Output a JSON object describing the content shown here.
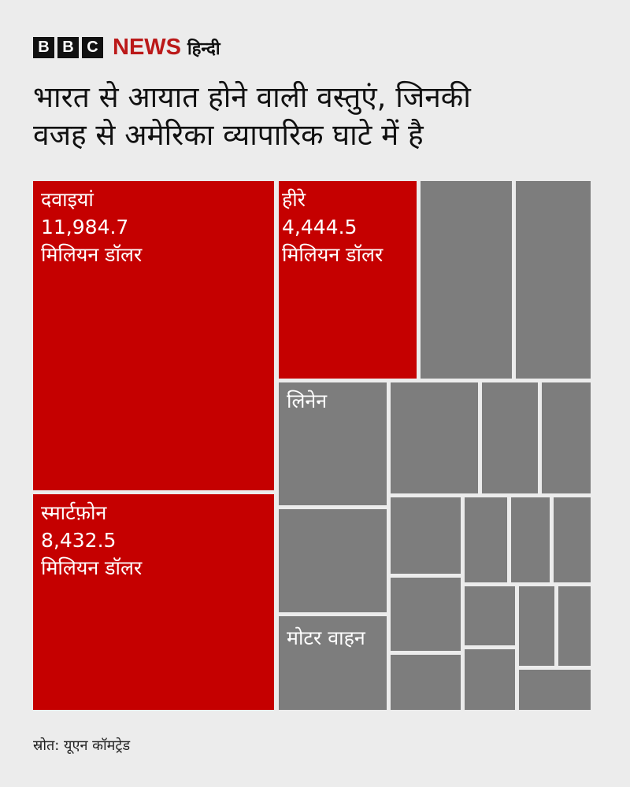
{
  "header": {
    "logo_letters": [
      "B",
      "B",
      "C"
    ],
    "logo_news": "NEWS",
    "logo_lang": "हिन्दी",
    "title_lines": [
      "भारत से आयात होने वाली वस्तुएं, जिनकी",
      "वजह से अमेरिका व्यापारिक घाटे में है"
    ]
  },
  "colors": {
    "highlight": "#c50000",
    "other": "#7d7d7d",
    "brand_red": "#bb1919"
  },
  "chart_data": {
    "type": "treemap",
    "unit": "मिलियन डॉलर",
    "highlighted": [
      {
        "name": "दवाइयां",
        "value": 11984.7,
        "value_label": "11,984.7",
        "unit_label": "मिलियन डॉलर"
      },
      {
        "name": "स्मार्टफ़ोन",
        "value": 8432.5,
        "value_label": "8,432.5",
        "unit_label": "मिलियन डॉलर"
      },
      {
        "name": "हीरे",
        "value": 4444.5,
        "value_label": "4,444.5",
        "unit_label": "मिलियन डॉलर"
      }
    ],
    "labeled_other": [
      "लिनेन",
      "मोटर वाहन"
    ]
  },
  "footer": {
    "source": "स्रोत: यूएन कॉमट्रेड"
  }
}
